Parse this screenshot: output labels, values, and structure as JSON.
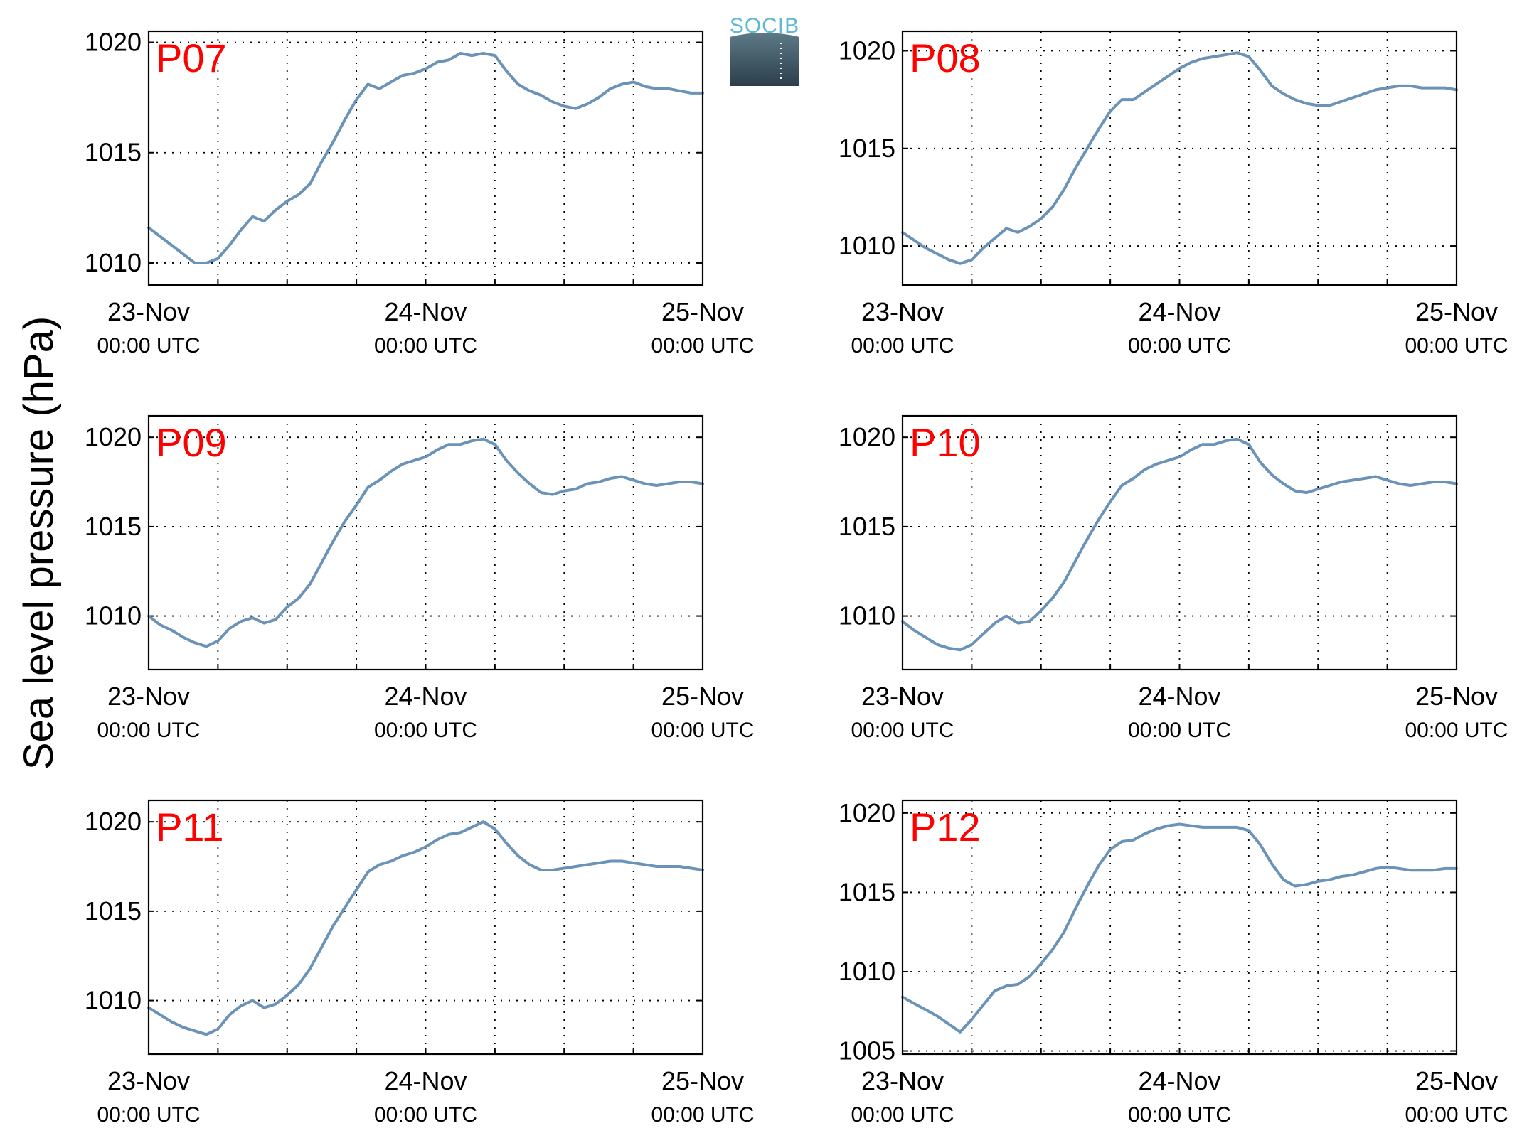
{
  "figure": {
    "ylabel": "Sea level pressure (hPa)",
    "logo_text": "SOCIB",
    "line_color": "#6b93b8",
    "station_color": "#ff0000"
  },
  "chart_data": [
    {
      "type": "line",
      "station": "P07",
      "ylim": [
        1009,
        1020.5
      ],
      "yticks": [
        1010,
        1015,
        1020
      ],
      "x_ticks": [
        {
          "hour": 0,
          "date": "23-Nov",
          "time": "00:00 UTC"
        },
        {
          "hour": 24,
          "date": "24-Nov",
          "time": "00:00 UTC"
        },
        {
          "hour": 48,
          "date": "25-Nov",
          "time": "00:00 UTC"
        }
      ],
      "grid": true,
      "series": [
        {
          "x": [
            0,
            1,
            2,
            3,
            4,
            5,
            6,
            7,
            8,
            9,
            10,
            11,
            12,
            13,
            14,
            15,
            16,
            17,
            18,
            19,
            20,
            21,
            22,
            23,
            24,
            25,
            26,
            27,
            28,
            29,
            30,
            31,
            32,
            33,
            34,
            35,
            36,
            37,
            38,
            39,
            40,
            41,
            42,
            43,
            44,
            45,
            46,
            47,
            48
          ],
          "values": [
            1011.6,
            1011.2,
            1010.8,
            1010.4,
            1010.0,
            1010.0,
            1010.2,
            1010.8,
            1011.5,
            1012.1,
            1011.9,
            1012.4,
            1012.8,
            1013.1,
            1013.6,
            1014.6,
            1015.5,
            1016.5,
            1017.4,
            1018.1,
            1017.9,
            1018.2,
            1018.5,
            1018.6,
            1018.8,
            1019.1,
            1019.2,
            1019.5,
            1019.4,
            1019.5,
            1019.4,
            1018.7,
            1018.1,
            1017.8,
            1017.6,
            1017.3,
            1017.1,
            1017.0,
            1017.2,
            1017.5,
            1017.9,
            1018.1,
            1018.2,
            1018.0,
            1017.9,
            1017.9,
            1017.8,
            1017.7,
            1017.7
          ]
        }
      ]
    },
    {
      "type": "line",
      "station": "P08",
      "ylim": [
        1008,
        1021
      ],
      "yticks": [
        1010,
        1015,
        1020
      ],
      "x_ticks": [
        {
          "hour": 0,
          "date": "23-Nov",
          "time": "00:00 UTC"
        },
        {
          "hour": 24,
          "date": "24-Nov",
          "time": "00:00 UTC"
        },
        {
          "hour": 48,
          "date": "25-Nov",
          "time": "00:00 UTC"
        }
      ],
      "grid": true,
      "series": [
        {
          "x": [
            0,
            1,
            2,
            3,
            4,
            5,
            6,
            7,
            8,
            9,
            10,
            11,
            12,
            13,
            14,
            15,
            16,
            17,
            18,
            19,
            20,
            21,
            22,
            23,
            24,
            25,
            26,
            27,
            28,
            29,
            30,
            31,
            32,
            33,
            34,
            35,
            36,
            37,
            38,
            39,
            40,
            41,
            42,
            43,
            44,
            45,
            46,
            47,
            48
          ],
          "values": [
            1010.7,
            1010.3,
            1009.9,
            1009.6,
            1009.3,
            1009.1,
            1009.3,
            1009.9,
            1010.4,
            1010.9,
            1010.7,
            1011.0,
            1011.4,
            1012.0,
            1012.9,
            1014.0,
            1015.0,
            1016.0,
            1016.9,
            1017.5,
            1017.5,
            1017.9,
            1018.3,
            1018.7,
            1019.1,
            1019.4,
            1019.6,
            1019.7,
            1019.8,
            1019.9,
            1019.7,
            1019.0,
            1018.2,
            1017.8,
            1017.5,
            1017.3,
            1017.2,
            1017.2,
            1017.4,
            1017.6,
            1017.8,
            1018.0,
            1018.1,
            1018.2,
            1018.2,
            1018.1,
            1018.1,
            1018.1,
            1018.0
          ]
        }
      ]
    },
    {
      "type": "line",
      "station": "P09",
      "ylim": [
        1007,
        1021.2
      ],
      "yticks": [
        1010,
        1015,
        1020
      ],
      "x_ticks": [
        {
          "hour": 0,
          "date": "23-Nov",
          "time": "00:00 UTC"
        },
        {
          "hour": 24,
          "date": "24-Nov",
          "time": "00:00 UTC"
        },
        {
          "hour": 48,
          "date": "25-Nov",
          "time": "00:00 UTC"
        }
      ],
      "grid": true,
      "series": [
        {
          "x": [
            0,
            1,
            2,
            3,
            4,
            5,
            6,
            7,
            8,
            9,
            10,
            11,
            12,
            13,
            14,
            15,
            16,
            17,
            18,
            19,
            20,
            21,
            22,
            23,
            24,
            25,
            26,
            27,
            28,
            29,
            30,
            31,
            32,
            33,
            34,
            35,
            36,
            37,
            38,
            39,
            40,
            41,
            42,
            43,
            44,
            45,
            46,
            47,
            48
          ],
          "values": [
            1010.0,
            1009.5,
            1009.2,
            1008.8,
            1008.5,
            1008.3,
            1008.6,
            1009.3,
            1009.7,
            1009.9,
            1009.6,
            1009.8,
            1010.5,
            1011.0,
            1011.8,
            1013.0,
            1014.2,
            1015.3,
            1016.2,
            1017.2,
            1017.6,
            1018.1,
            1018.5,
            1018.7,
            1018.9,
            1019.3,
            1019.6,
            1019.6,
            1019.8,
            1019.9,
            1019.6,
            1018.7,
            1018.0,
            1017.4,
            1016.9,
            1016.8,
            1017.0,
            1017.1,
            1017.4,
            1017.5,
            1017.7,
            1017.8,
            1017.6,
            1017.4,
            1017.3,
            1017.4,
            1017.5,
            1017.5,
            1017.4
          ]
        }
      ]
    },
    {
      "type": "line",
      "station": "P10",
      "ylim": [
        1007,
        1021.2
      ],
      "yticks": [
        1010,
        1015,
        1020
      ],
      "x_ticks": [
        {
          "hour": 0,
          "date": "23-Nov",
          "time": "00:00 UTC"
        },
        {
          "hour": 24,
          "date": "24-Nov",
          "time": "00:00 UTC"
        },
        {
          "hour": 48,
          "date": "25-Nov",
          "time": "00:00 UTC"
        }
      ],
      "grid": true,
      "series": [
        {
          "x": [
            0,
            1,
            2,
            3,
            4,
            5,
            6,
            7,
            8,
            9,
            10,
            11,
            12,
            13,
            14,
            15,
            16,
            17,
            18,
            19,
            20,
            21,
            22,
            23,
            24,
            25,
            26,
            27,
            28,
            29,
            30,
            31,
            32,
            33,
            34,
            35,
            36,
            37,
            38,
            39,
            40,
            41,
            42,
            43,
            44,
            45,
            46,
            47,
            48
          ],
          "values": [
            1009.7,
            1009.2,
            1008.8,
            1008.4,
            1008.2,
            1008.1,
            1008.4,
            1009.0,
            1009.6,
            1010.0,
            1009.6,
            1009.7,
            1010.3,
            1011.0,
            1011.9,
            1013.1,
            1014.3,
            1015.4,
            1016.4,
            1017.3,
            1017.7,
            1018.2,
            1018.5,
            1018.7,
            1018.9,
            1019.3,
            1019.6,
            1019.6,
            1019.8,
            1019.9,
            1019.6,
            1018.6,
            1017.9,
            1017.4,
            1017.0,
            1016.9,
            1017.1,
            1017.3,
            1017.5,
            1017.6,
            1017.7,
            1017.8,
            1017.6,
            1017.4,
            1017.3,
            1017.4,
            1017.5,
            1017.5,
            1017.4
          ]
        }
      ]
    },
    {
      "type": "line",
      "station": "P11",
      "ylim": [
        1007,
        1021.2
      ],
      "yticks": [
        1010,
        1015,
        1020
      ],
      "x_ticks": [
        {
          "hour": 0,
          "date": "23-Nov",
          "time": "00:00 UTC"
        },
        {
          "hour": 24,
          "date": "24-Nov",
          "time": "00:00 UTC"
        },
        {
          "hour": 48,
          "date": "25-Nov",
          "time": "00:00 UTC"
        }
      ],
      "grid": true,
      "series": [
        {
          "x": [
            0,
            1,
            2,
            3,
            4,
            5,
            6,
            7,
            8,
            9,
            10,
            11,
            12,
            13,
            14,
            15,
            16,
            17,
            18,
            19,
            20,
            21,
            22,
            23,
            24,
            25,
            26,
            27,
            28,
            29,
            30,
            31,
            32,
            33,
            34,
            35,
            36,
            37,
            38,
            39,
            40,
            41,
            42,
            43,
            44,
            45,
            46,
            47,
            48
          ],
          "values": [
            1009.6,
            1009.2,
            1008.8,
            1008.5,
            1008.3,
            1008.1,
            1008.4,
            1009.2,
            1009.7,
            1010.0,
            1009.6,
            1009.8,
            1010.3,
            1010.9,
            1011.8,
            1013.0,
            1014.2,
            1015.2,
            1016.2,
            1017.2,
            1017.6,
            1017.8,
            1018.1,
            1018.3,
            1018.6,
            1019.0,
            1019.3,
            1019.4,
            1019.7,
            1020.0,
            1019.6,
            1018.8,
            1018.1,
            1017.6,
            1017.3,
            1017.3,
            1017.4,
            1017.5,
            1017.6,
            1017.7,
            1017.8,
            1017.8,
            1017.7,
            1017.6,
            1017.5,
            1017.5,
            1017.5,
            1017.4,
            1017.3
          ]
        }
      ]
    },
    {
      "type": "line",
      "station": "P12",
      "ylim": [
        1004.8,
        1020.8
      ],
      "yticks": [
        1005,
        1010,
        1015,
        1020
      ],
      "x_ticks": [
        {
          "hour": 0,
          "date": "23-Nov",
          "time": "00:00 UTC"
        },
        {
          "hour": 24,
          "date": "24-Nov",
          "time": "00:00 UTC"
        },
        {
          "hour": 48,
          "date": "25-Nov",
          "time": "00:00 UTC"
        }
      ],
      "grid": true,
      "series": [
        {
          "x": [
            0,
            1,
            2,
            3,
            4,
            5,
            6,
            7,
            8,
            9,
            10,
            11,
            12,
            13,
            14,
            15,
            16,
            17,
            18,
            19,
            20,
            21,
            22,
            23,
            24,
            25,
            26,
            27,
            28,
            29,
            30,
            31,
            32,
            33,
            34,
            35,
            36,
            37,
            38,
            39,
            40,
            41,
            42,
            43,
            44,
            45,
            46,
            47,
            48
          ],
          "values": [
            1008.4,
            1008.0,
            1007.6,
            1007.2,
            1006.7,
            1006.2,
            1007.0,
            1007.9,
            1008.8,
            1009.1,
            1009.2,
            1009.7,
            1010.5,
            1011.4,
            1012.5,
            1014.0,
            1015.4,
            1016.7,
            1017.7,
            1018.2,
            1018.3,
            1018.7,
            1019.0,
            1019.2,
            1019.3,
            1019.2,
            1019.1,
            1019.1,
            1019.1,
            1019.1,
            1018.9,
            1018.0,
            1016.8,
            1015.8,
            1015.4,
            1015.5,
            1015.7,
            1015.8,
            1016.0,
            1016.1,
            1016.3,
            1016.5,
            1016.6,
            1016.5,
            1016.4,
            1016.4,
            1016.4,
            1016.5,
            1016.5
          ]
        }
      ]
    }
  ]
}
